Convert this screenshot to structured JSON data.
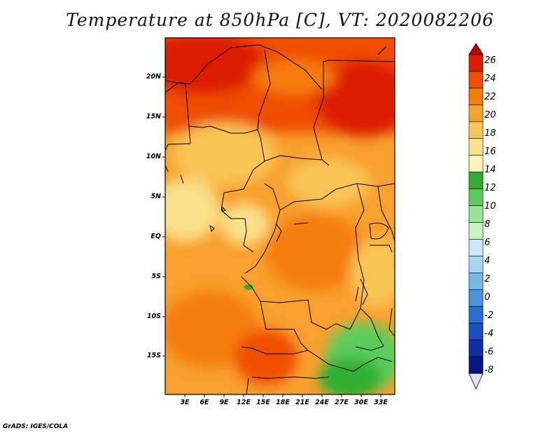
{
  "title": "Temperature at 850hPa [C], VT: 2020082206",
  "map": {
    "lat_labels": [
      "20N",
      "15N",
      "10N",
      "5N",
      "EQ",
      "5S",
      "10S",
      "15S"
    ],
    "lon_labels": [
      "3E",
      "6E",
      "9E",
      "12E",
      "15E",
      "18E",
      "21E",
      "24E",
      "27E",
      "30E",
      "33E"
    ]
  },
  "colorbar": {
    "labels": [
      "26",
      "24",
      "22",
      "20",
      "18",
      "16",
      "14",
      "12",
      "10",
      "8",
      "6",
      "4",
      "2",
      "0",
      "-2",
      "-4",
      "-6",
      "-8"
    ],
    "colors": [
      "#b40000",
      "#dc1e00",
      "#ef4e00",
      "#f57d0a",
      "#f7a02e",
      "#f9c456",
      "#fbe08a",
      "#fcf3b8",
      "#2fae32",
      "#5bcc5b",
      "#96e696",
      "#c8f5c8",
      "#cce8f6",
      "#a8d6f2",
      "#79b9ea",
      "#4a93dc",
      "#2a6ed0",
      "#1a4fc2",
      "#0d2ea8",
      "#061682",
      "#e0e0ee"
    ]
  },
  "credit": "GrADS: IGES/COLA"
}
